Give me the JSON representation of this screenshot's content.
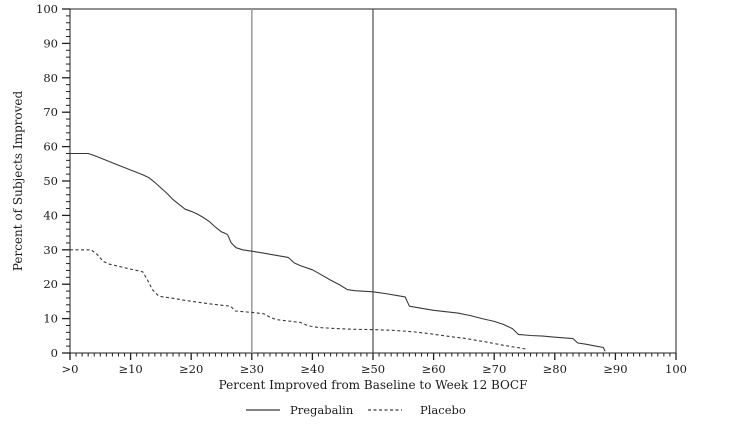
{
  "figure": {
    "kind": "responder-analysis-line-chart",
    "background": "#ffffff"
  },
  "colors": {
    "axis": "#1f1f1f",
    "tick_label": "#1c1c1c",
    "series_line": "#3a3a3a",
    "reference_line_30": "#a0a0a0",
    "reference_line_50": "#4d4d4d"
  },
  "chart_data": {
    "type": "line",
    "title": "",
    "xlabel": "Percent Improved from Baseline to Week 12 BOCF",
    "ylabel": "Percent of Subjects Improved",
    "xlim": [
      0,
      100
    ],
    "ylim": [
      0,
      100
    ],
    "grid": false,
    "x_tick_values": [
      0,
      10,
      20,
      30,
      40,
      50,
      60,
      70,
      80,
      90,
      100
    ],
    "x_tick_labels": [
      ">0",
      "≥10",
      "≥20",
      "≥30",
      "≥40",
      "≥50",
      "≥60",
      "≥70",
      "≥80",
      "≥90",
      "100"
    ],
    "y_tick_values": [
      0,
      10,
      20,
      30,
      40,
      50,
      60,
      70,
      80,
      90,
      100
    ],
    "y_tick_labels": [
      "0",
      "10",
      "20",
      "30",
      "40",
      "50",
      "60",
      "70",
      "80",
      "90",
      "100"
    ],
    "x_minor_tick_step": 1,
    "y_minor_tick_step": 2,
    "reference_lines": [
      {
        "x": 30,
        "color": "#a0a0a0",
        "width": 1.6
      },
      {
        "x": 50,
        "color": "#4d4d4d",
        "width": 1.2
      }
    ],
    "legend": {
      "position": "bottom",
      "entries": [
        {
          "label": "Pregabalin",
          "style": "solid"
        },
        {
          "label": "Placebo",
          "style": "dashed"
        }
      ]
    },
    "series": [
      {
        "name": "Pregabalin",
        "style": "solid",
        "color": "#3a3a3a",
        "points": [
          [
            0,
            58
          ],
          [
            3,
            58
          ],
          [
            4,
            57.4
          ],
          [
            6,
            56
          ],
          [
            8,
            54.6
          ],
          [
            10,
            53.2
          ],
          [
            12,
            51.8
          ],
          [
            13,
            51
          ],
          [
            14,
            49.6
          ],
          [
            15,
            48
          ],
          [
            16,
            46.4
          ],
          [
            17,
            44.6
          ],
          [
            18,
            43.2
          ],
          [
            19,
            41.8
          ],
          [
            20,
            41.2
          ],
          [
            21,
            40.4
          ],
          [
            22,
            39.4
          ],
          [
            23,
            38.2
          ],
          [
            24,
            36.6
          ],
          [
            25,
            35.2
          ],
          [
            25.6,
            34.8
          ],
          [
            26,
            34.4
          ],
          [
            26.6,
            32
          ],
          [
            27.4,
            30.6
          ],
          [
            28.5,
            30
          ],
          [
            30,
            29.6
          ],
          [
            32,
            29
          ],
          [
            34,
            28.4
          ],
          [
            36,
            27.8
          ],
          [
            37,
            26.2
          ],
          [
            38,
            25.4
          ],
          [
            40,
            24.2
          ],
          [
            41,
            23.2
          ],
          [
            43,
            21.2
          ],
          [
            44.5,
            19.8
          ],
          [
            45.8,
            18.4
          ],
          [
            47,
            18.1
          ],
          [
            50,
            17.8
          ],
          [
            52,
            17.3
          ],
          [
            54,
            16.7
          ],
          [
            55.3,
            16.3
          ],
          [
            56,
            13.6
          ],
          [
            58,
            13
          ],
          [
            60,
            12.4
          ],
          [
            62,
            12
          ],
          [
            64,
            11.6
          ],
          [
            66,
            10.9
          ],
          [
            68,
            10
          ],
          [
            70,
            9.2
          ],
          [
            71.5,
            8.3
          ],
          [
            73,
            7.1
          ],
          [
            74,
            5.4
          ],
          [
            76,
            5.1
          ],
          [
            78,
            4.9
          ],
          [
            80,
            4.6
          ],
          [
            83,
            4.2
          ],
          [
            83.8,
            2.9
          ],
          [
            85,
            2.6
          ],
          [
            86.5,
            2.1
          ],
          [
            88,
            1.6
          ],
          [
            88.3,
            0.5
          ]
        ]
      },
      {
        "name": "Placebo",
        "style": "dashed",
        "color": "#3a3a3a",
        "points": [
          [
            0,
            30
          ],
          [
            3.5,
            30
          ],
          [
            4.5,
            28.6
          ],
          [
            5.5,
            26.6
          ],
          [
            6.5,
            25.8
          ],
          [
            8,
            25.2
          ],
          [
            10,
            24.4
          ],
          [
            12,
            23.6
          ],
          [
            12.8,
            21.2
          ],
          [
            13.6,
            18.4
          ],
          [
            14.5,
            16.8
          ],
          [
            15,
            16.4
          ],
          [
            17,
            15.9
          ],
          [
            19,
            15.3
          ],
          [
            21,
            14.8
          ],
          [
            23,
            14.3
          ],
          [
            25,
            13.9
          ],
          [
            26.5,
            13.6
          ],
          [
            27.3,
            12.2
          ],
          [
            30,
            11.8
          ],
          [
            32,
            11.4
          ],
          [
            33,
            10.4
          ],
          [
            34,
            9.7
          ],
          [
            36,
            9.3
          ],
          [
            38,
            8.9
          ],
          [
            39.3,
            7.9
          ],
          [
            41,
            7.4
          ],
          [
            44,
            7.1
          ],
          [
            47,
            6.9
          ],
          [
            50,
            6.8
          ],
          [
            53,
            6.6
          ],
          [
            55,
            6.4
          ],
          [
            57,
            6.1
          ],
          [
            59,
            5.7
          ],
          [
            61,
            5.2
          ],
          [
            63,
            4.7
          ],
          [
            65,
            4.3
          ],
          [
            67,
            3.7
          ],
          [
            69,
            3.1
          ],
          [
            71,
            2.4
          ],
          [
            73,
            1.8
          ],
          [
            74.5,
            1.4
          ],
          [
            75.3,
            1.1
          ]
        ]
      }
    ]
  }
}
